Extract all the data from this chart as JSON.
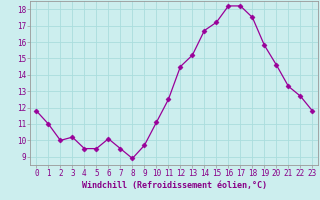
{
  "x": [
    0,
    1,
    2,
    3,
    4,
    5,
    6,
    7,
    8,
    9,
    10,
    11,
    12,
    13,
    14,
    15,
    16,
    17,
    18,
    19,
    20,
    21,
    22,
    23
  ],
  "y": [
    11.8,
    11.0,
    10.0,
    10.2,
    9.5,
    9.5,
    10.1,
    9.5,
    8.9,
    9.7,
    11.1,
    12.5,
    14.5,
    15.2,
    16.7,
    17.2,
    18.2,
    18.2,
    17.5,
    15.8,
    14.6,
    13.3,
    12.7,
    11.8
  ],
  "line_color": "#990099",
  "marker": "D",
  "marker_size": 2.5,
  "bg_color": "#cceeee",
  "grid_color": "#aadddd",
  "xlabel": "Windchill (Refroidissement éolien,°C)",
  "xlim": [
    -0.5,
    23.5
  ],
  "ylim": [
    8.5,
    18.5
  ],
  "yticks": [
    9,
    10,
    11,
    12,
    13,
    14,
    15,
    16,
    17,
    18
  ],
  "xticks": [
    0,
    1,
    2,
    3,
    4,
    5,
    6,
    7,
    8,
    9,
    10,
    11,
    12,
    13,
    14,
    15,
    16,
    17,
    18,
    19,
    20,
    21,
    22,
    23
  ],
  "tick_color": "#880088",
  "label_color": "#880088",
  "spine_color": "#999999",
  "tick_fontsize": 5.5,
  "xlabel_fontsize": 6.0
}
